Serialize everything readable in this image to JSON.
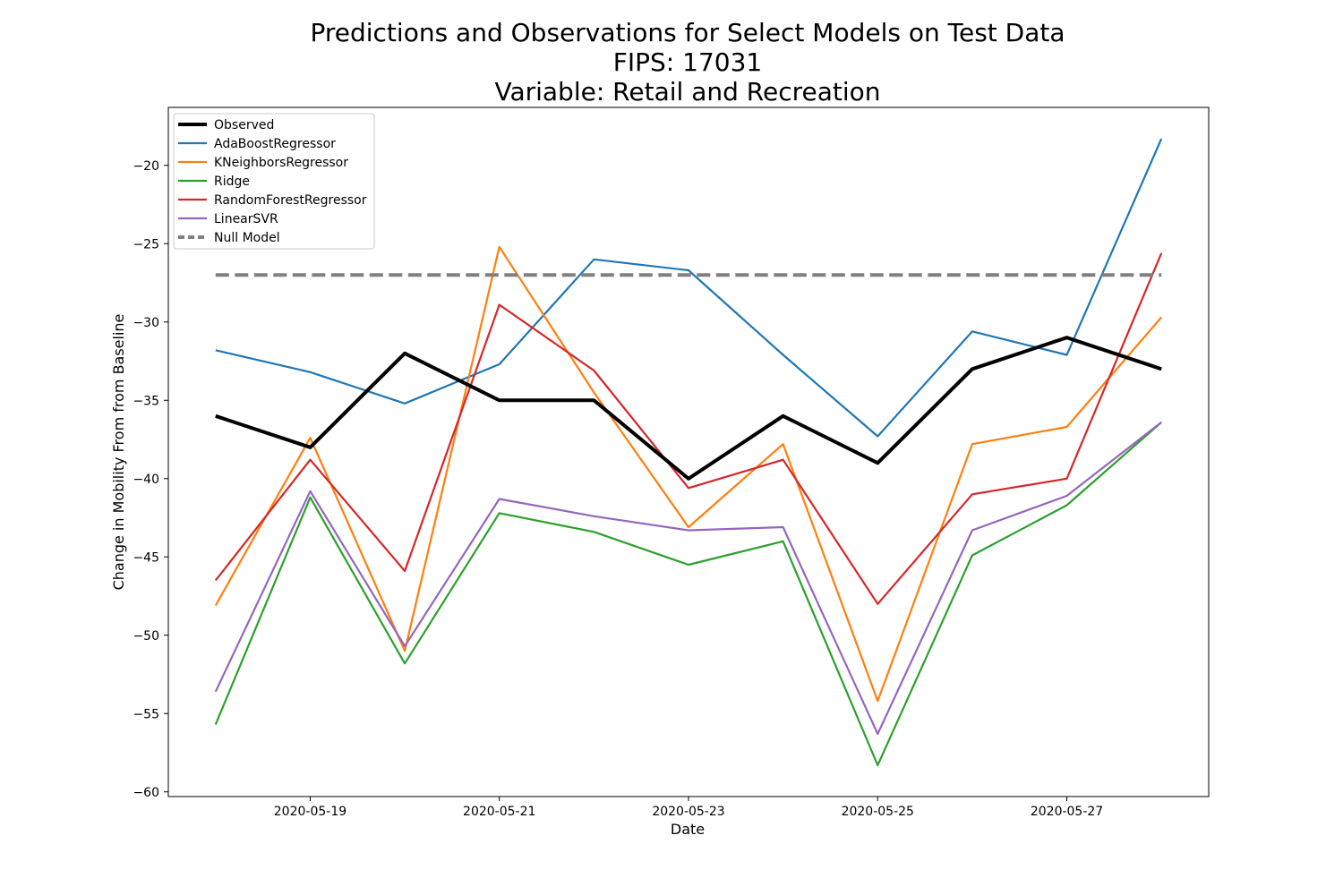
{
  "chart_data": {
    "type": "line",
    "title_lines": [
      "Predictions and Observations for Select Models on Test Data",
      "FIPS: 17031",
      "Variable: Retail and Recreation"
    ],
    "xlabel": "Date",
    "ylabel": "Change in Mobility From from Baseline",
    "x": [
      "2020-05-18",
      "2020-05-19",
      "2020-05-20",
      "2020-05-21",
      "2020-05-22",
      "2020-05-23",
      "2020-05-24",
      "2020-05-25",
      "2020-05-26",
      "2020-05-27",
      "2020-05-28"
    ],
    "x_ticks": [
      "2020-05-19",
      "2020-05-21",
      "2020-05-23",
      "2020-05-25",
      "2020-05-27"
    ],
    "xlim": [
      "2020-05-17T12:00",
      "2020-05-28T12:00"
    ],
    "ylim": [
      -60.3,
      -16.3
    ],
    "y_ticks": [
      -20,
      -25,
      -30,
      -35,
      -40,
      -45,
      -50,
      -55,
      -60
    ],
    "y_tick_labels": [
      "−20",
      "−25",
      "−30",
      "−35",
      "−40",
      "−45",
      "−50",
      "−55",
      "−60"
    ],
    "grid": false,
    "legend_position": "upper left",
    "series": [
      {
        "name": "Observed",
        "color": "#000000",
        "dashed": false,
        "thick": true,
        "values": [
          -36,
          -38,
          -32,
          -35,
          -35,
          -40,
          -36,
          -39,
          -33,
          -31,
          -33
        ]
      },
      {
        "name": "AdaBoostRegressor",
        "color": "#1f77b4",
        "dashed": false,
        "thick": false,
        "values": [
          -31.8,
          -33.2,
          -35.2,
          -32.7,
          -26.0,
          -26.7,
          -32.1,
          -37.3,
          -30.6,
          -32.1,
          -18.3
        ]
      },
      {
        "name": "KNeighborsRegressor",
        "color": "#ff7f0e",
        "dashed": false,
        "thick": false,
        "values": [
          -48.1,
          -37.4,
          -51.0,
          -25.2,
          -34.5,
          -43.1,
          -37.8,
          -54.2,
          -37.8,
          -36.7,
          -29.7
        ]
      },
      {
        "name": "Ridge",
        "color": "#2ca02c",
        "dashed": false,
        "thick": false,
        "values": [
          -55.7,
          -41.2,
          -51.8,
          -42.2,
          -43.4,
          -45.5,
          -44.0,
          -58.3,
          -44.9,
          -41.7,
          -36.4
        ]
      },
      {
        "name": "RandomForestRegressor",
        "color": "#d62728",
        "dashed": false,
        "thick": false,
        "values": [
          -46.5,
          -38.8,
          -45.9,
          -28.9,
          -33.1,
          -40.6,
          -38.8,
          -48.0,
          -41.0,
          -40.0,
          -25.6
        ]
      },
      {
        "name": "LinearSVR",
        "color": "#9467bd",
        "dashed": false,
        "thick": false,
        "values": [
          -53.6,
          -40.8,
          -50.7,
          -41.3,
          -42.4,
          -43.3,
          -43.1,
          -56.3,
          -43.3,
          -41.1,
          -36.4
        ]
      },
      {
        "name": "Null Model",
        "color": "#808080",
        "dashed": true,
        "thick": true,
        "values": [
          -27,
          -27,
          -27,
          -27,
          -27,
          -27,
          -27,
          -27,
          -27,
          -27,
          -27
        ]
      }
    ]
  }
}
